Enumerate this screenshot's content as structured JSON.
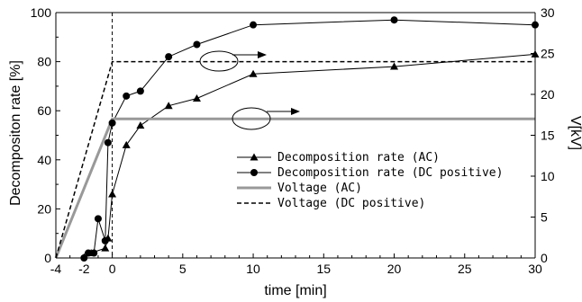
{
  "chart_data": {
    "type": "line",
    "xlabel": "time [min]",
    "ylabel": "Decompositon rate [%]",
    "y2label": "V[kV]",
    "xlim": [
      -4,
      30
    ],
    "ylim": [
      0,
      100
    ],
    "y2lim": [
      0,
      30
    ],
    "x_ticks": [
      -4,
      -2,
      0,
      5,
      10,
      15,
      20,
      25,
      30
    ],
    "x_tick_labels": [
      "-4",
      "-2",
      "0",
      "5",
      "10",
      "15",
      "20",
      "25",
      "30"
    ],
    "y_ticks": [
      0,
      20,
      40,
      60,
      80,
      100
    ],
    "y_tick_labels": [
      "0",
      "20",
      "40",
      "60",
      "80",
      "100"
    ],
    "y2_ticks": [
      0,
      5,
      10,
      15,
      20,
      25,
      30
    ],
    "y2_tick_labels": [
      "0",
      "5",
      "10",
      "15",
      "20",
      "25",
      "30"
    ],
    "grid": false,
    "legend_position": "center-right",
    "series": [
      {
        "name": "Decomposition rate (AC)",
        "axis": "left",
        "marker": "triangle",
        "line_style": "solid",
        "color": "#000000",
        "points": [
          [
            -1.5,
            2
          ],
          [
            -0.5,
            4
          ],
          [
            -0.3,
            8
          ],
          [
            0,
            26
          ],
          [
            1,
            46
          ],
          [
            2,
            54
          ],
          [
            4,
            62
          ],
          [
            6,
            65
          ],
          [
            10,
            75
          ],
          [
            20,
            78
          ],
          [
            30,
            83
          ]
        ]
      },
      {
        "name": "Decomposition rate (DC positive)",
        "axis": "left",
        "marker": "circle",
        "line_style": "solid",
        "color": "#000000",
        "points": [
          [
            -2,
            0
          ],
          [
            -1.7,
            2
          ],
          [
            -1.3,
            2
          ],
          [
            -1,
            16
          ],
          [
            -0.5,
            7
          ],
          [
            -0.3,
            47
          ],
          [
            0,
            55
          ],
          [
            1,
            66
          ],
          [
            2,
            68
          ],
          [
            4,
            82
          ],
          [
            6,
            87
          ],
          [
            10,
            95
          ],
          [
            20,
            97
          ],
          [
            30,
            95
          ]
        ]
      },
      {
        "name": "Voltage (AC)",
        "axis": "right",
        "marker": "none",
        "line_style": "solid",
        "color": "#999999",
        "points": [
          [
            -4,
            0
          ],
          [
            0,
            17
          ],
          [
            30,
            17
          ]
        ]
      },
      {
        "name": "Voltage (DC positive)",
        "axis": "right",
        "marker": "none",
        "line_style": "dashed",
        "color": "#000000",
        "points": [
          [
            -4,
            0
          ],
          [
            0,
            24
          ],
          [
            30,
            24
          ]
        ]
      }
    ],
    "annotations": [
      {
        "type": "ellipse_arrow",
        "series": "Voltage (DC positive)",
        "direction": "right"
      },
      {
        "type": "ellipse_arrow",
        "series": "Voltage (AC)",
        "direction": "right"
      }
    ]
  }
}
